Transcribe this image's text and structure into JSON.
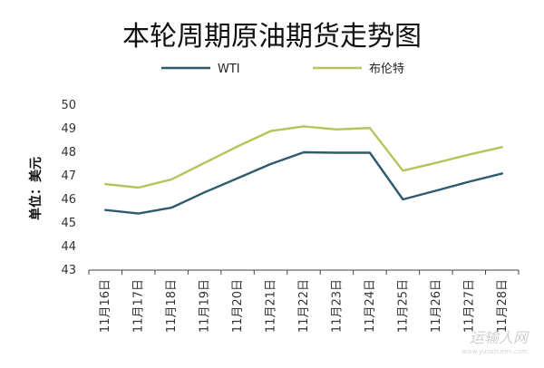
{
  "chart_data": {
    "type": "line",
    "title": "本轮周期原油期货走势图",
    "ylabel": "单位：美元",
    "xlabel": "",
    "ylim": [
      43,
      50
    ],
    "yticks": [
      43,
      44,
      45,
      46,
      47,
      48,
      49,
      50
    ],
    "categories": [
      "11月16日",
      "11月17日",
      "11月18日",
      "11月19日",
      "11月20日",
      "11月21日",
      "11月22日",
      "11月23日",
      "11月24日",
      "11月25日",
      "11月26日",
      "11月27日",
      "11月28日"
    ],
    "legend_position": "top",
    "grid": false,
    "series": [
      {
        "name": "WTI",
        "color": "#2e5a6e",
        "values": [
          45.55,
          45.4,
          45.65,
          46.3,
          46.9,
          47.5,
          48.0,
          47.98,
          47.98,
          46.0,
          46.37,
          46.75,
          47.1
        ]
      },
      {
        "name": "布伦特",
        "color": "#b7c25a",
        "values": [
          46.65,
          46.5,
          46.85,
          47.55,
          48.25,
          48.9,
          49.1,
          48.97,
          49.03,
          47.22,
          47.55,
          47.9,
          48.22
        ]
      }
    ]
  },
  "watermark": {
    "main": "运输人网",
    "sub": "www.yunshuren.com"
  }
}
